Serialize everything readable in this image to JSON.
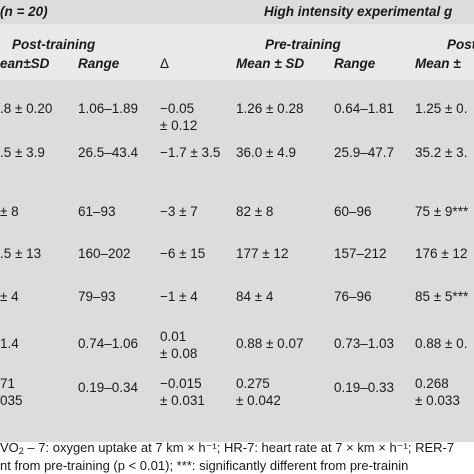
{
  "title_left": "(n = 20)",
  "title_right": "High intensity experimental g",
  "group_headers": {
    "post_training_left": "Post-training",
    "pre_training": "Pre-training",
    "post_training_right": "Post"
  },
  "columns": {
    "mean_sd_1": "ean±SD",
    "range_1": "Range",
    "delta": "Δ",
    "mean_sd_2": "Mean ± SD",
    "range_2": "Range",
    "mean_sd_3": "Mean ±"
  },
  "rows": [
    {
      "c1": ".8 ± 0.20",
      "c2": "1.06–1.89",
      "c3a": "−0.05",
      "c3b": "± 0.12",
      "c4": "1.26 ± 0.28",
      "c5": "0.64–1.81",
      "c6": "1.25 ± 0."
    },
    {
      "c1": ".5 ± 3.9",
      "c2": "26.5–43.4",
      "c3a": "−1.7 ± 3.5",
      "c3b": "",
      "c4": "36.0 ± 4.9",
      "c5": "25.9–47.7",
      "c6": "35.2 ± 3."
    },
    {
      "c1": "± 8",
      "c2": "61–93",
      "c3a": "−3 ± 7",
      "c3b": "",
      "c4": "82 ± 8",
      "c5": "60–96",
      "c6": "75 ± 9***"
    },
    {
      "c1": ".5 ± 13",
      "c2": "160–202",
      "c3a": "−6 ± 15",
      "c3b": "",
      "c4": "177 ± 12",
      "c5": "157–212",
      "c6": "176 ± 12"
    },
    {
      "c1": "± 4",
      "c2": "79–93",
      "c3a": "−1 ± 4",
      "c3b": "",
      "c4": "84 ± 4",
      "c5": "76–96",
      "c6": "85 ± 5***"
    },
    {
      "c1": "1.4",
      "c2": "0.74–1.06",
      "c3a": "0.01",
      "c3b": "± 0.08",
      "c4": "0.88 ± 0.07",
      "c5": "0.73–1.03",
      "c6": "0.88 ± 0."
    },
    {
      "c1": "71",
      "c1b": "035",
      "c2": "0.19–0.34",
      "c3a": "−0.015",
      "c3b": "± 0.031",
      "c4a": "0.275",
      "c4b": "± 0.042",
      "c5": "0.19–0.33",
      "c6a": "0.268",
      "c6b": "± 0.033"
    }
  ],
  "footnote_1_pre": "VO",
  "footnote_1_sub": "2",
  "footnote_1_post": " – 7: oxygen uptake at 7 km × h⁻¹; HR-7: heart rate at 7 × km × h⁻¹; RER-7",
  "footnote_2": "nt from pre-training (p < 0.01); ***: significantly different from pre-trainin"
}
